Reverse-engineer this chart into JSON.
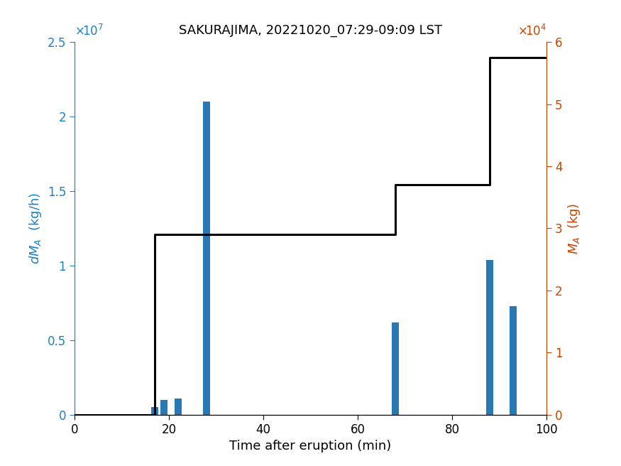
{
  "title": "SAKURAJIMA, 20221020_07:29-09:09 LST",
  "xlabel": "Time after eruption (min)",
  "ylabel_left": "dM_A (kg/h)",
  "ylabel_right": "M_A (kg)",
  "bar_x": [
    17,
    19,
    22,
    28,
    68,
    88,
    93
  ],
  "bar_heights": [
    500000,
    1000000,
    1100000,
    21000000,
    6200000,
    10400000,
    7300000
  ],
  "bar_width": 1.5,
  "bar_color": "#2878B4",
  "cum_x": [
    0,
    17,
    17,
    28,
    28,
    68,
    68,
    88,
    88,
    100
  ],
  "cum_y": [
    0,
    0,
    29000,
    29000,
    29000,
    29000,
    37000,
    37000,
    57500,
    57500
  ],
  "line_color": "#000000",
  "line_width": 2.2,
  "xlim": [
    0,
    100
  ],
  "ylim_left": [
    0,
    25000000
  ],
  "ylim_right": [
    0,
    60000
  ],
  "xticks": [
    0,
    20,
    40,
    60,
    80,
    100
  ],
  "yticks_left": [
    0,
    5000000,
    10000000,
    15000000,
    20000000,
    25000000
  ],
  "ytick_labels_left": [
    "0",
    "0.5",
    "1",
    "1.5",
    "2",
    "2.5"
  ],
  "yticks_right": [
    0,
    10000,
    20000,
    30000,
    40000,
    50000,
    60000
  ],
  "ytick_labels_right": [
    "0",
    "1",
    "2",
    "3",
    "4",
    "5",
    "6"
  ],
  "left_axis_color": "#1B82C8",
  "right_axis_color": "#CC4400",
  "title_fontsize": 13,
  "label_fontsize": 13,
  "tick_fontsize": 12,
  "figure_width": 8.75,
  "figure_height": 6.56,
  "dpi": 100
}
